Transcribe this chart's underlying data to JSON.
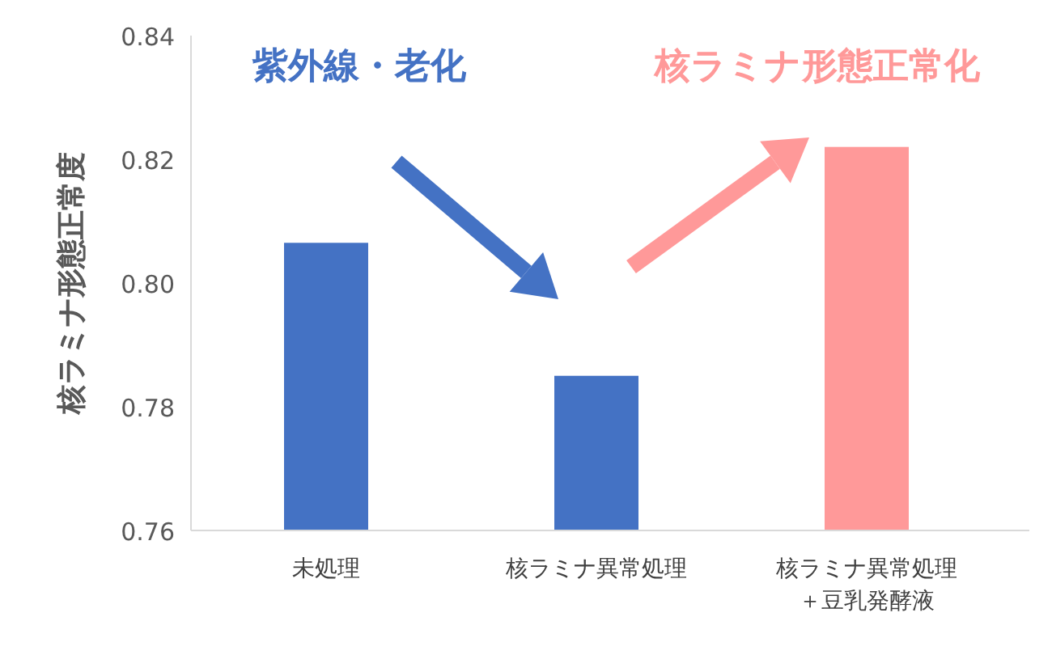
{
  "chart_data": {
    "type": "bar",
    "ylabel": "核ラミナ形態正常度",
    "categories": [
      "未処理",
      "核ラミナ異常処理",
      "核ラミナ異常処理＋豆乳発酵液"
    ],
    "values": [
      0.8065,
      0.785,
      0.822
    ],
    "colors": [
      "#4472c4",
      "#4472c4",
      "#ff9999"
    ],
    "ylim": [
      0.76,
      0.84
    ],
    "yticks": [
      0.76,
      0.78,
      {
        "value": 0.8,
        "label": "0.80"
      },
      0.82,
      0.84
    ],
    "annotations": [
      "紫外線・老化",
      "核ラミナ形態正常化"
    ]
  }
}
